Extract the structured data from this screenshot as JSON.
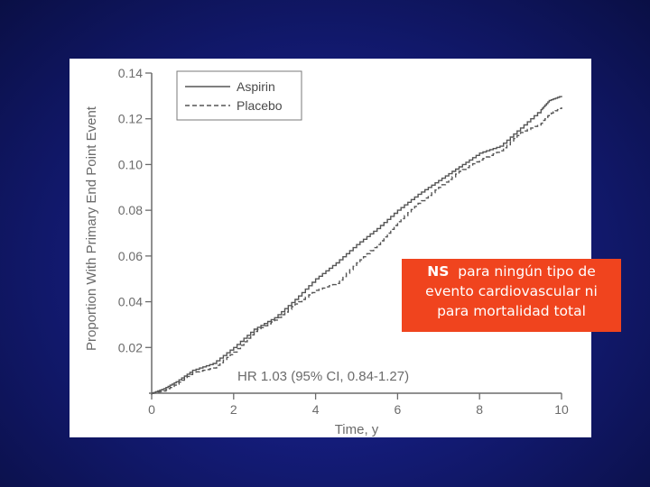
{
  "chart_data": {
    "type": "line",
    "title": "",
    "xlabel": "Time, y",
    "ylabel": "Proportion With Primary End Point Event",
    "xlim": [
      0,
      10
    ],
    "ylim": [
      0,
      0.14
    ],
    "x_ticks": [
      "0",
      "2",
      "4",
      "6",
      "8",
      "10"
    ],
    "y_ticks": [
      "0.02",
      "0.04",
      "0.06",
      "0.08",
      "0.10",
      "0.12",
      "0.14"
    ],
    "legend_position": "top-left",
    "annotation": "HR 1.03 (95% CI, 0.84-1.27)",
    "series": [
      {
        "name": "Aspirin",
        "style": "solid",
        "x": [
          0,
          0.3,
          0.6,
          1.0,
          1.5,
          2.0,
          2.5,
          3.0,
          3.5,
          4.0,
          4.5,
          5.0,
          5.5,
          6.0,
          6.5,
          7.0,
          7.5,
          8.0,
          8.5,
          9.0,
          9.5,
          9.7,
          10.0
        ],
        "values": [
          0,
          0.002,
          0.005,
          0.01,
          0.013,
          0.02,
          0.028,
          0.033,
          0.041,
          0.05,
          0.057,
          0.065,
          0.072,
          0.08,
          0.087,
          0.093,
          0.099,
          0.105,
          0.108,
          0.116,
          0.124,
          0.128,
          0.13
        ]
      },
      {
        "name": "Placebo",
        "style": "dashed",
        "x": [
          0,
          0.3,
          0.6,
          1.0,
          1.5,
          2.0,
          2.5,
          3.0,
          3.5,
          4.0,
          4.5,
          5.0,
          5.5,
          6.0,
          6.5,
          7.0,
          7.5,
          8.0,
          8.5,
          9.0,
          9.5,
          9.7,
          10.0
        ],
        "values": [
          0,
          0.001,
          0.004,
          0.009,
          0.011,
          0.018,
          0.027,
          0.032,
          0.039,
          0.045,
          0.048,
          0.057,
          0.065,
          0.075,
          0.083,
          0.09,
          0.097,
          0.102,
          0.106,
          0.114,
          0.118,
          0.122,
          0.125
        ]
      }
    ],
    "colors": {
      "axis": "#6b6b6b",
      "line": "#555555"
    }
  },
  "callout": {
    "bold": "NS",
    "line1_rest": "para ningún tipo de",
    "line2": "evento cardiovascular ni",
    "line3": "para mortalidad total",
    "color": "#f0441e"
  },
  "background": {
    "color": "#141c7a"
  }
}
